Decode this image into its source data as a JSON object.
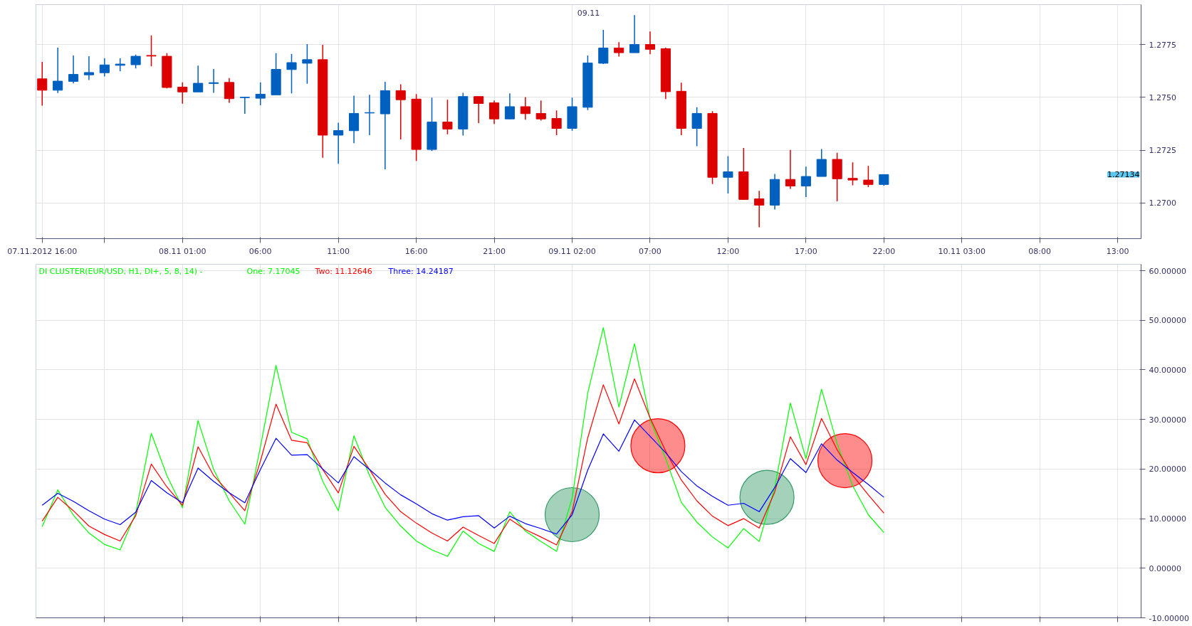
{
  "chart_data": [
    {
      "type": "candlestick",
      "xlim": [
        "2012-11-07T15:36",
        "2012-11-10T14:30"
      ],
      "ylim": [
        1.2683,
        1.2794
      ],
      "xticks": [
        {
          "value": "2012-11-07T16:00",
          "label": "07.11.2012 16:00"
        },
        {
          "value": "2012-11-07T20:00",
          "label": null
        },
        {
          "value": "2012-11-08T01:00",
          "label": "08.11 01:00"
        },
        {
          "value": "2012-11-08T06:00",
          "label": "06:00"
        },
        {
          "value": "2012-11-08T11:00",
          "label": "11:00"
        },
        {
          "value": "2012-11-08T16:00",
          "label": "16:00"
        },
        {
          "value": "2012-11-08T21:00",
          "label": "21:00"
        },
        {
          "value": "2012-11-09T02:00",
          "label": "09.11 02:00"
        },
        {
          "value": "2012-11-09T07:00",
          "label": "07:00"
        },
        {
          "value": "2012-11-09T12:00",
          "label": "12:00"
        },
        {
          "value": "2012-11-09T17:00",
          "label": "17:00"
        },
        {
          "value": "2012-11-09T22:00",
          "label": "22:00"
        },
        {
          "value": "2012-11-10T03:00",
          "label": "10.11 03:00"
        },
        {
          "value": "2012-11-10T08:00",
          "label": "08:00"
        },
        {
          "value": "2012-11-10T13:00",
          "label": "13:00"
        }
      ],
      "yticks": [
        {
          "value": 1.27,
          "label": "1.2700"
        },
        {
          "value": 1.2725,
          "label": "1.2725"
        },
        {
          "value": 1.275,
          "label": "1.2750"
        },
        {
          "value": 1.2775,
          "label": "1.2775"
        }
      ],
      "grid": true,
      "annotations": [
        "09.11",
        "1.27134"
      ],
      "x": [
        "2012-11-07T16:00",
        "2012-11-07T17:00",
        "2012-11-07T18:00",
        "2012-11-07T19:00",
        "2012-11-07T20:00",
        "2012-11-07T21:00",
        "2012-11-07T22:00",
        "2012-11-07T23:00",
        "2012-11-08T00:00",
        "2012-11-08T01:00",
        "2012-11-08T02:00",
        "2012-11-08T03:00",
        "2012-11-08T04:00",
        "2012-11-08T05:00",
        "2012-11-08T06:00",
        "2012-11-08T07:00",
        "2012-11-08T08:00",
        "2012-11-08T09:00",
        "2012-11-08T10:00",
        "2012-11-08T11:00",
        "2012-11-08T12:00",
        "2012-11-08T13:00",
        "2012-11-08T14:00",
        "2012-11-08T15:00",
        "2012-11-08T16:00",
        "2012-11-08T17:00",
        "2012-11-08T18:00",
        "2012-11-08T19:00",
        "2012-11-08T20:00",
        "2012-11-08T21:00",
        "2012-11-08T22:00",
        "2012-11-08T23:00",
        "2012-11-09T00:00",
        "2012-11-09T01:00",
        "2012-11-09T02:00",
        "2012-11-09T03:00",
        "2012-11-09T04:00",
        "2012-11-09T05:00",
        "2012-11-09T06:00",
        "2012-11-09T07:00",
        "2012-11-09T08:00",
        "2012-11-09T09:00",
        "2012-11-09T10:00",
        "2012-11-09T11:00",
        "2012-11-09T12:00",
        "2012-11-09T13:00",
        "2012-11-09T14:00",
        "2012-11-09T15:00",
        "2012-11-09T16:00",
        "2012-11-09T17:00",
        "2012-11-09T18:00",
        "2012-11-09T19:00",
        "2012-11-09T20:00",
        "2012-11-09T21:00",
        "2012-11-09T22:00"
      ],
      "ohlc": [
        [
          1.27588,
          1.27668,
          1.27461,
          1.27534
        ],
        [
          1.27534,
          1.27736,
          1.27521,
          1.27577
        ],
        [
          1.27576,
          1.27699,
          1.27566,
          1.27609
        ],
        [
          1.27607,
          1.27695,
          1.27582,
          1.27618
        ],
        [
          1.27617,
          1.27685,
          1.27599,
          1.27654
        ],
        [
          1.27652,
          1.27685,
          1.27624,
          1.27658
        ],
        [
          1.27655,
          1.27703,
          1.27637,
          1.27695
        ],
        [
          1.27699,
          1.27794,
          1.27647,
          1.27696
        ],
        [
          1.27695,
          1.2771,
          1.27543,
          1.27547
        ],
        [
          1.27549,
          1.27571,
          1.2747,
          1.27526
        ],
        [
          1.27526,
          1.27651,
          1.27526,
          1.27567
        ],
        [
          1.27566,
          1.27635,
          1.27522,
          1.2757
        ],
        [
          1.27571,
          1.27592,
          1.27474,
          1.27494
        ],
        [
          1.27499,
          1.27502,
          1.27422,
          1.27501
        ],
        [
          1.27496,
          1.27571,
          1.27463,
          1.27515
        ],
        [
          1.27512,
          1.2771,
          1.27512,
          1.27633
        ],
        [
          1.27632,
          1.27706,
          1.27519,
          1.27665
        ],
        [
          1.27662,
          1.27753,
          1.27565,
          1.27679
        ],
        [
          1.27679,
          1.27749,
          1.27214,
          1.27321
        ],
        [
          1.27321,
          1.2738,
          1.27185,
          1.27343
        ],
        [
          1.27342,
          1.27508,
          1.27283,
          1.27424
        ],
        [
          1.27426,
          1.27512,
          1.27321,
          1.27428
        ],
        [
          1.27422,
          1.27574,
          1.27159,
          1.27532
        ],
        [
          1.27532,
          1.27562,
          1.27301,
          1.27489
        ],
        [
          1.27492,
          1.27516,
          1.27199,
          1.27253
        ],
        [
          1.27253,
          1.27499,
          1.27246,
          1.27383
        ],
        [
          1.27383,
          1.27489,
          1.27325,
          1.2735
        ],
        [
          1.2735,
          1.27522,
          1.27319,
          1.27504
        ],
        [
          1.27504,
          1.27504,
          1.27378,
          1.27471
        ],
        [
          1.27474,
          1.27485,
          1.27374,
          1.27398
        ],
        [
          1.27398,
          1.27519,
          1.27398,
          1.27456
        ],
        [
          1.27456,
          1.27501,
          1.27394,
          1.27423
        ],
        [
          1.27424,
          1.27485,
          1.2739,
          1.27398
        ],
        [
          1.274,
          1.27438,
          1.27321,
          1.27353
        ],
        [
          1.27353,
          1.27499,
          1.27342,
          1.27456
        ],
        [
          1.27453,
          1.27699,
          1.2744,
          1.27663
        ],
        [
          1.27662,
          1.2782,
          1.27658,
          1.27734
        ],
        [
          1.27734,
          1.27762,
          1.27694,
          1.27712
        ],
        [
          1.27712,
          1.2789,
          1.27712,
          1.27751
        ],
        [
          1.27751,
          1.27813,
          1.27705,
          1.27728
        ],
        [
          1.27731,
          1.27736,
          1.27492,
          1.27527
        ],
        [
          1.27529,
          1.2757,
          1.27321,
          1.27353
        ],
        [
          1.27353,
          1.27453,
          1.27269,
          1.27424
        ],
        [
          1.27424,
          1.27435,
          1.27089,
          1.27121
        ],
        [
          1.27121,
          1.27221,
          1.27044,
          1.27147
        ],
        [
          1.27147,
          1.2726,
          1.27014,
          1.27016
        ],
        [
          1.27019,
          1.27057,
          1.26884,
          1.26989
        ],
        [
          1.26989,
          1.27137,
          1.26968,
          1.27111
        ],
        [
          1.27111,
          1.27251,
          1.27066,
          1.2708
        ],
        [
          1.2708,
          1.27172,
          1.27027,
          1.27125
        ],
        [
          1.27125,
          1.27255,
          1.27125,
          1.27206
        ],
        [
          1.27206,
          1.27237,
          1.27007,
          1.27114
        ],
        [
          1.27116,
          1.27192,
          1.27083,
          1.27108
        ],
        [
          1.27108,
          1.27175,
          1.27075,
          1.27087
        ],
        [
          1.27087,
          1.27134,
          1.27081,
          1.27134
        ]
      ],
      "colors": [
        "#dd0000",
        "#0060c0",
        "#0060c0",
        "#0060c0",
        "#0060c0",
        "#0060c0",
        "#0060c0",
        "#dd0000",
        "#dd0000",
        "#dd0000",
        "#0060c0",
        "#0060c0",
        "#dd0000",
        "#0060c0",
        "#0060c0",
        "#0060c0",
        "#0060c0",
        "#0060c0",
        "#dd0000",
        "#0060c0",
        "#0060c0",
        "#0060c0",
        "#0060c0",
        "#dd0000",
        "#dd0000",
        "#0060c0",
        "#dd0000",
        "#0060c0",
        "#dd0000",
        "#dd0000",
        "#0060c0",
        "#dd0000",
        "#dd0000",
        "#dd0000",
        "#0060c0",
        "#0060c0",
        "#0060c0",
        "#dd0000",
        "#0060c0",
        "#dd0000",
        "#dd0000",
        "#dd0000",
        "#0060c0",
        "#dd0000",
        "#0060c0",
        "#dd0000",
        "#dd0000",
        "#0060c0",
        "#dd0000",
        "#0060c0",
        "#0060c0",
        "#dd0000",
        "#dd0000",
        "#dd0000",
        "#0060c0"
      ]
    },
    {
      "type": "line",
      "title": "DI CLUSTER(EUR/USD, H1, DI+, 5, 8, 14) -",
      "xlim": [
        "2012-11-07T15:36",
        "2012-11-10T14:30"
      ],
      "ylim": [
        -10,
        61.3
      ],
      "xticks": [
        {
          "value": "2012-11-07T20:00",
          "label": null
        },
        {
          "value": "2012-11-08T01:00",
          "label": null
        },
        {
          "value": "2012-11-08T06:00",
          "label": null
        },
        {
          "value": "2012-11-08T11:00",
          "label": null
        },
        {
          "value": "2012-11-08T16:00",
          "label": null
        },
        {
          "value": "2012-11-08T21:00",
          "label": null
        },
        {
          "value": "2012-11-09T02:00",
          "label": null
        },
        {
          "value": "2012-11-09T07:00",
          "label": null
        },
        {
          "value": "2012-11-09T12:00",
          "label": null
        },
        {
          "value": "2012-11-09T17:00",
          "label": null
        },
        {
          "value": "2012-11-09T22:00",
          "label": null
        },
        {
          "value": "2012-11-10T03:00",
          "label": null
        },
        {
          "value": "2012-11-10T08:00",
          "label": null
        },
        {
          "value": "2012-11-10T13:00",
          "label": null
        }
      ],
      "yticks": [
        {
          "value": -10,
          "label": "-10.00000"
        },
        {
          "value": 0,
          "label": "0.00000"
        },
        {
          "value": 10,
          "label": "10.00000"
        },
        {
          "value": 20,
          "label": "20.00000"
        },
        {
          "value": 30,
          "label": "30.00000"
        },
        {
          "value": 40,
          "label": "40.00000"
        },
        {
          "value": 50,
          "label": "50.00000"
        },
        {
          "value": 60,
          "label": "60.00000"
        }
      ],
      "tick_labels": "y",
      "grid": true,
      "legend": "top left",
      "x": [
        "2012-11-07T16:00",
        "2012-11-07T17:00",
        "2012-11-07T18:00",
        "2012-11-07T19:00",
        "2012-11-07T20:00",
        "2012-11-07T21:00",
        "2012-11-07T22:00",
        "2012-11-07T23:00",
        "2012-11-08T00:00",
        "2012-11-08T01:00",
        "2012-11-08T02:00",
        "2012-11-08T03:00",
        "2012-11-08T04:00",
        "2012-11-08T05:00",
        "2012-11-08T06:00",
        "2012-11-08T07:00",
        "2012-11-08T08:00",
        "2012-11-08T09:00",
        "2012-11-08T10:00",
        "2012-11-08T11:00",
        "2012-11-08T12:00",
        "2012-11-08T13:00",
        "2012-11-08T14:00",
        "2012-11-08T15:00",
        "2012-11-08T16:00",
        "2012-11-08T17:00",
        "2012-11-08T18:00",
        "2012-11-08T19:00",
        "2012-11-08T20:00",
        "2012-11-08T21:00",
        "2012-11-08T22:00",
        "2012-11-08T23:00",
        "2012-11-09T00:00",
        "2012-11-09T01:00",
        "2012-11-09T02:00",
        "2012-11-09T03:00",
        "2012-11-09T04:00",
        "2012-11-09T05:00",
        "2012-11-09T06:00",
        "2012-11-09T07:00",
        "2012-11-09T08:00",
        "2012-11-09T09:00",
        "2012-11-09T10:00",
        "2012-11-09T11:00",
        "2012-11-09T12:00",
        "2012-11-09T13:00",
        "2012-11-09T14:00",
        "2012-11-09T15:00",
        "2012-11-09T16:00",
        "2012-11-09T17:00",
        "2012-11-09T18:00",
        "2012-11-09T19:00",
        "2012-11-09T20:00",
        "2012-11-09T21:00",
        "2012-11-09T22:00"
      ],
      "series": [
        {
          "name": "One: 7.17045",
          "color": "#00ff00",
          "values": [
            8.4,
            15.8,
            10.7,
            7.1,
            4.8,
            3.7,
            11.1,
            27.2,
            18.7,
            12.2,
            29.8,
            19.9,
            13.6,
            8.9,
            24.5,
            40.9,
            27.4,
            26.1,
            17.5,
            11.6,
            26.7,
            18.7,
            12.3,
            8.5,
            5.5,
            3.7,
            2.4,
            7.5,
            5.0,
            3.4,
            11.4,
            7.5,
            5.4,
            3.4,
            14.2,
            35.3,
            48.5,
            32.5,
            45.3,
            30.0,
            22.1,
            13.3,
            9.3,
            6.3,
            4.1,
            8.0,
            5.4,
            16.3,
            33.3,
            22.1,
            36.1,
            25.1,
            16.6,
            10.8,
            7.2
          ]
        },
        {
          "name": "Two: 11.12646",
          "color": "#ff0000",
          "values": [
            9.5,
            14.3,
            11.6,
            8.5,
            6.8,
            5.5,
            10.6,
            21.0,
            16.4,
            12.7,
            24.5,
            18.7,
            15.2,
            11.6,
            21.6,
            33.1,
            25.8,
            25.3,
            19.9,
            15.2,
            24.6,
            19.9,
            14.9,
            11.4,
            9.1,
            7.1,
            5.5,
            8.3,
            6.6,
            5.0,
            9.9,
            7.8,
            6.3,
            4.7,
            11.4,
            26.3,
            37.0,
            29.1,
            38.2,
            30.3,
            23.6,
            17.8,
            13.6,
            10.5,
            8.6,
            10.0,
            8.1,
            15.4,
            26.5,
            20.9,
            30.2,
            23.9,
            18.7,
            14.8,
            11.1
          ]
        },
        {
          "name": "Three: 14.24187",
          "color": "#0000ff",
          "values": [
            12.7,
            15.1,
            13.5,
            11.6,
            9.9,
            8.8,
            11.3,
            17.7,
            15.2,
            13.2,
            20.2,
            17.5,
            15.2,
            13.2,
            19.9,
            26.2,
            22.8,
            22.9,
            20.0,
            17.2,
            22.5,
            19.9,
            17.2,
            14.8,
            13.0,
            11.0,
            9.7,
            10.4,
            10.6,
            8.1,
            10.5,
            9.0,
            8.0,
            6.9,
            10.8,
            19.8,
            27.1,
            23.6,
            29.9,
            26.6,
            23.3,
            19.5,
            16.6,
            14.5,
            12.7,
            13.1,
            11.4,
            16.3,
            22.1,
            19.3,
            25.1,
            21.8,
            19.3,
            16.9,
            14.3
          ]
        },
        {
          "type": "scatter",
          "marker": "circle",
          "color": "#339966",
          "x": [
            "2012-11-09T02:00",
            "2012-11-09T14:30"
          ],
          "values": [
            10.8,
            14.3
          ]
        },
        {
          "type": "scatter",
          "marker": "circle",
          "color": "#ff0000",
          "x": [
            "2012-11-09T07:30",
            "2012-11-09T19:30"
          ],
          "values": [
            24.7,
            21.7
          ]
        }
      ]
    }
  ]
}
